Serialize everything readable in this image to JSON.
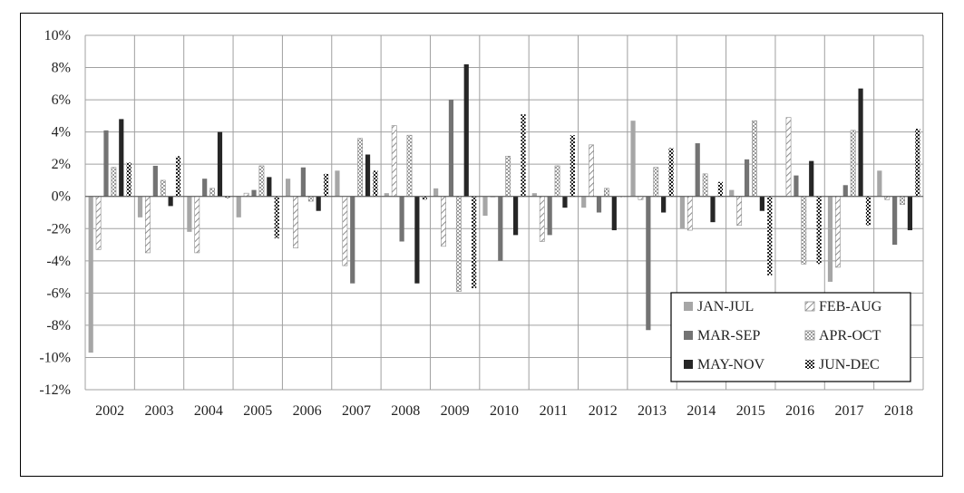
{
  "chart_data": {
    "type": "bar",
    "categories": [
      "2002",
      "2003",
      "2004",
      "2005",
      "2006",
      "2007",
      "2008",
      "2009",
      "2010",
      "2011",
      "2012",
      "2013",
      "2014",
      "2015",
      "2016",
      "2017",
      "2018"
    ],
    "ylim": [
      -12,
      10
    ],
    "yticks": [
      10,
      8,
      6,
      4,
      2,
      0,
      -2,
      -4,
      -6,
      -8,
      -10,
      -12
    ],
    "ytick_labels": [
      "10%",
      "8%",
      "6%",
      "4%",
      "2%",
      "0%",
      "-2%",
      "-4%",
      "-6%",
      "-8%",
      "-10%",
      "-12%"
    ],
    "grid": true,
    "legend_position": "bottom-right",
    "series": [
      {
        "name": "JAN-JUL",
        "style": "solid-light",
        "color": "#a6a6a6",
        "values": [
          -9.7,
          -1.3,
          -2.2,
          -1.3,
          1.1,
          1.6,
          0.2,
          0.5,
          -1.2,
          0.2,
          -0.7,
          4.7,
          -2.0,
          0.4,
          0.0,
          -5.3,
          1.6
        ]
      },
      {
        "name": "FEB-AUG",
        "style": "diagonal",
        "color": "#808080",
        "values": [
          -3.3,
          -3.5,
          -3.5,
          0.2,
          -3.2,
          -4.3,
          4.4,
          -3.1,
          0.0,
          -2.8,
          3.2,
          -0.2,
          -2.1,
          -1.8,
          4.9,
          -4.4,
          -0.2
        ]
      },
      {
        "name": "MAR-SEP",
        "style": "solid-mid",
        "color": "#737373",
        "values": [
          4.1,
          1.9,
          1.1,
          0.4,
          1.8,
          -5.4,
          -2.8,
          6.0,
          -4.0,
          -2.4,
          -1.0,
          -8.3,
          3.3,
          2.3,
          1.3,
          0.7,
          -3.0
        ]
      },
      {
        "name": "APR-OCT",
        "style": "checker",
        "color": "#a6a6a6",
        "values": [
          1.8,
          1.0,
          0.5,
          1.9,
          -0.3,
          3.6,
          3.8,
          -5.9,
          2.5,
          1.9,
          0.5,
          1.8,
          1.4,
          4.7,
          -4.2,
          4.1,
          -0.5
        ]
      },
      {
        "name": "MAY-NOV",
        "style": "solid-dark",
        "color": "#262626",
        "values": [
          4.8,
          -0.6,
          4.0,
          1.2,
          -0.9,
          2.6,
          -5.4,
          8.2,
          -2.4,
          -0.7,
          -2.1,
          -1.0,
          -1.6,
          -0.9,
          2.2,
          6.7,
          -2.1
        ]
      },
      {
        "name": "JUN-DEC",
        "style": "checker-dark",
        "color": "#333333",
        "values": [
          2.1,
          2.5,
          -0.1,
          -2.6,
          1.4,
          1.6,
          -0.2,
          -5.7,
          5.1,
          3.8,
          0.0,
          3.0,
          0.9,
          -4.9,
          -4.2,
          -1.8,
          4.2
        ]
      }
    ]
  }
}
